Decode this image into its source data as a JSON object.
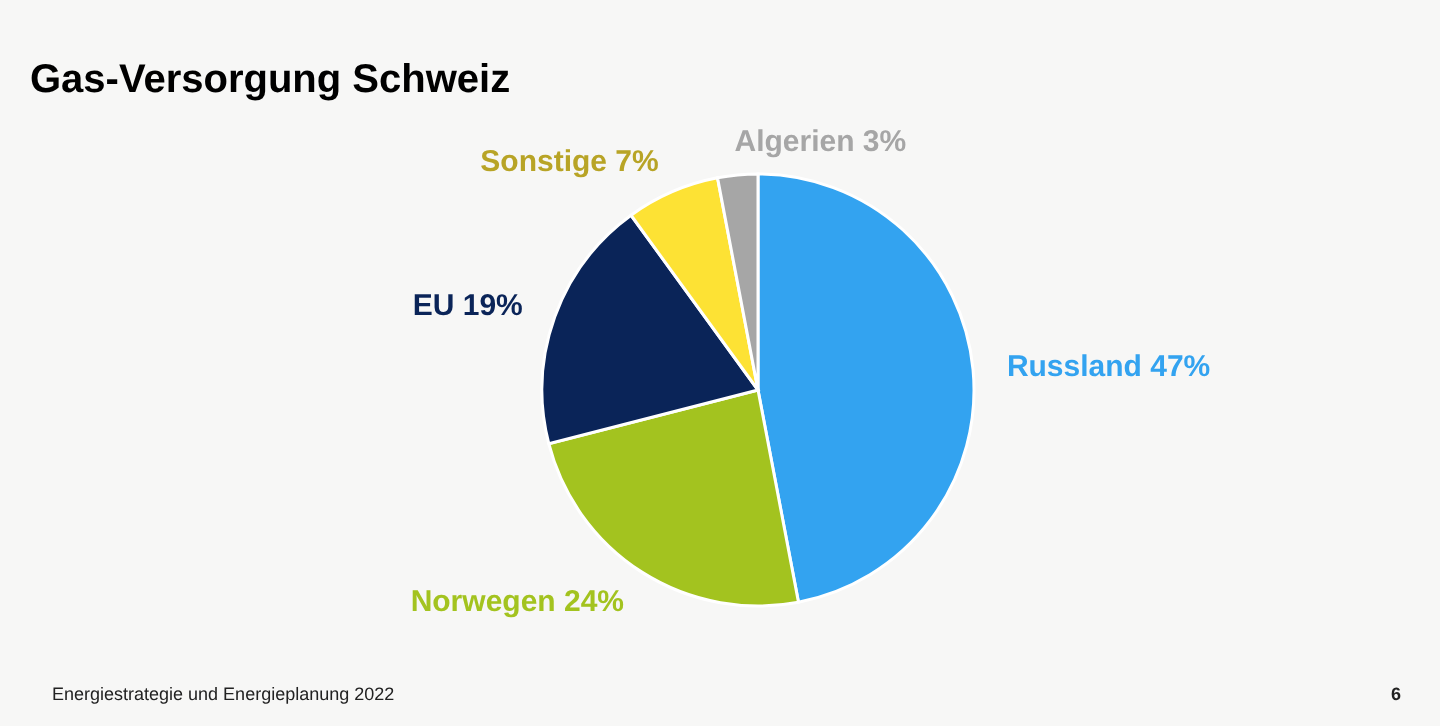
{
  "chart_data": {
    "type": "pie",
    "title": "Gas-Versorgung Schweiz",
    "categories": [
      "Russland",
      "Norwegen",
      "EU",
      "Sonstige",
      "Algerien"
    ],
    "values": [
      47,
      24,
      19,
      7,
      3
    ],
    "value_labels": [
      "47%",
      "24%",
      "19%",
      "7%",
      "3%"
    ],
    "colors": [
      "#33a3f0",
      "#a3c31f",
      "#0a2458",
      "#fde234",
      "#a6a6a6"
    ],
    "annotations": [
      "Energiestrategie und Energieplanung 2022",
      "6"
    ]
  }
}
